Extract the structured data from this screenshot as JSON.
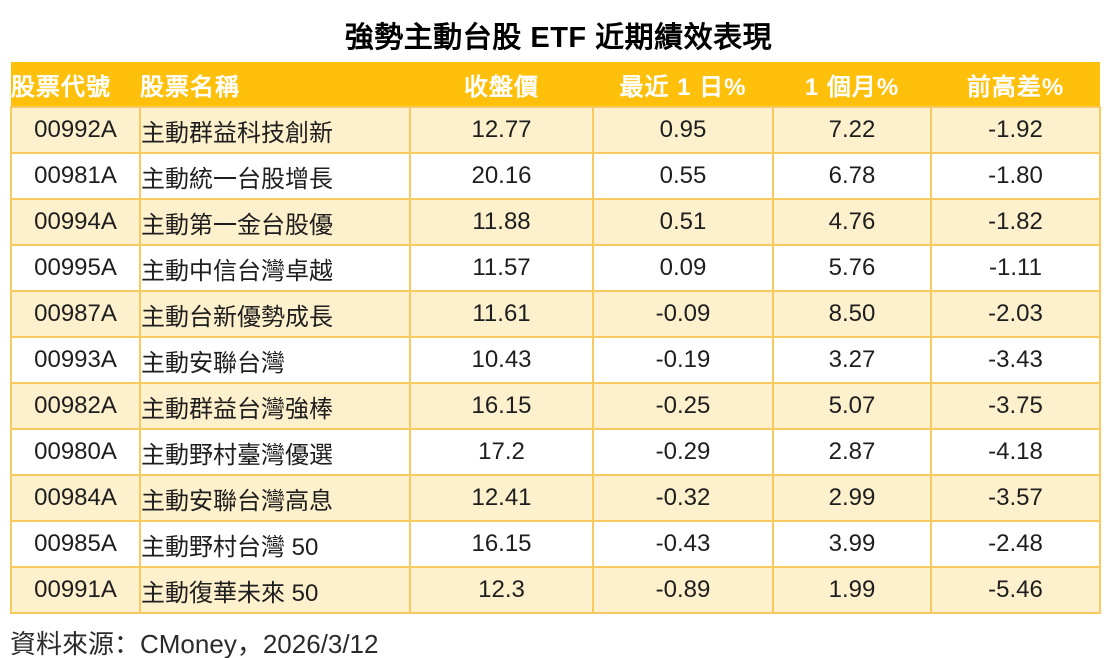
{
  "title": "強勢主動台股 ETF 近期績效表現",
  "footer": {
    "source_note": "資料來源：CMoney，2026/3/12"
  },
  "colors": {
    "header_bg": "#FEC00A",
    "row_alt_bg": "#FDF0CC",
    "row_bg": "#FFFFFF",
    "border": "#F9CA60",
    "header_text": "#FFFFFF",
    "body_text": "#1E1E1E"
  },
  "chart_data": {
    "type": "table",
    "title": "強勢主動台股 ETF 近期績效表現",
    "columns": [
      {
        "key": "code",
        "label": "股票代號"
      },
      {
        "key": "name",
        "label": "股票名稱"
      },
      {
        "key": "close_price",
        "label": "收盤價"
      },
      {
        "key": "day1_pct",
        "label": "最近 1 日%"
      },
      {
        "key": "month1_pct",
        "label": "1 個月%"
      },
      {
        "key": "prev_high_diff_pct",
        "label": "前高差%"
      }
    ],
    "rows": [
      [
        "00992A",
        "主動群益科技創新",
        "12.77",
        "0.95",
        "7.22",
        "-1.92"
      ],
      [
        "00981A",
        "主動統一台股增長",
        "20.16",
        "0.55",
        "6.78",
        "-1.80"
      ],
      [
        "00994A",
        "主動第一金台股優",
        "11.88",
        "0.51",
        "4.76",
        "-1.82"
      ],
      [
        "00995A",
        "主動中信台灣卓越",
        "11.57",
        "0.09",
        "5.76",
        "-1.11"
      ],
      [
        "00987A",
        "主動台新優勢成長",
        "11.61",
        "-0.09",
        "8.50",
        "-2.03"
      ],
      [
        "00993A",
        "主動安聯台灣",
        "10.43",
        "-0.19",
        "3.27",
        "-3.43"
      ],
      [
        "00982A",
        "主動群益台灣強棒",
        "16.15",
        "-0.25",
        "5.07",
        "-3.75"
      ],
      [
        "00980A",
        "主動野村臺灣優選",
        "17.2",
        "-0.29",
        "2.87",
        "-4.18"
      ],
      [
        "00984A",
        "主動安聯台灣高息",
        "12.41",
        "-0.32",
        "2.99",
        "-3.57"
      ],
      [
        "00985A",
        "主動野村台灣 50",
        "16.15",
        "-0.43",
        "3.99",
        "-2.48"
      ],
      [
        "00991A",
        "主動復華未來 50",
        "12.3",
        "-0.89",
        "1.99",
        "-5.46"
      ]
    ]
  }
}
